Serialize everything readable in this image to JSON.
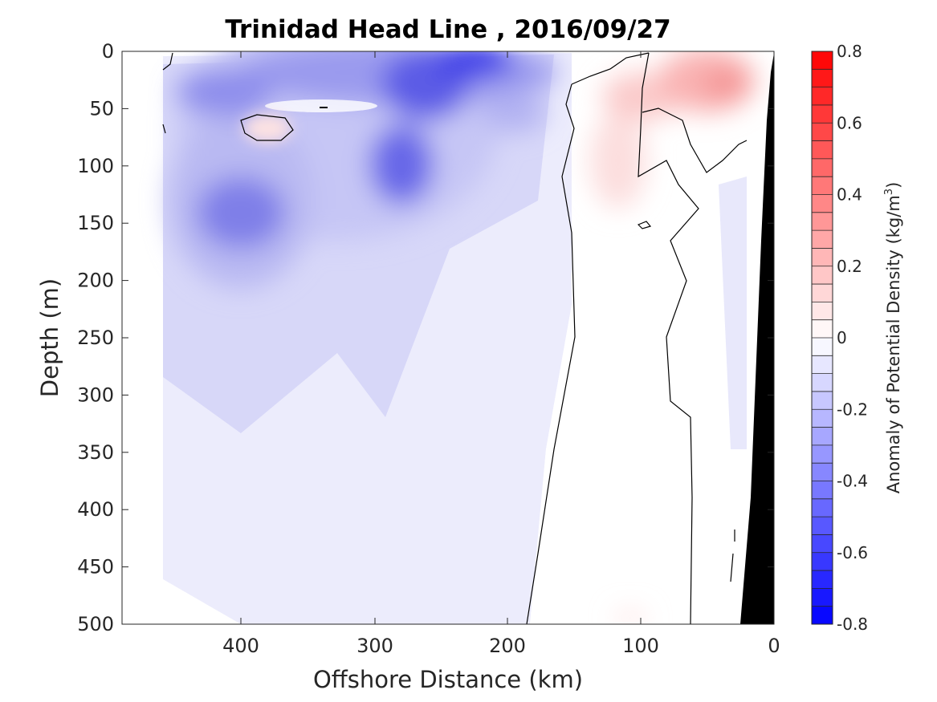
{
  "chart_data": {
    "type": "heatmap",
    "title": "Trinidad Head Line , 2016/09/27",
    "xlabel": "Offshore Distance (km)",
    "ylabel": "Depth (m)",
    "xlim": [
      490,
      0
    ],
    "ylim": [
      0,
      500
    ],
    "x_ticks": [
      "400",
      "300",
      "200",
      "100",
      "0"
    ],
    "y_ticks": [
      "0",
      "50",
      "100",
      "150",
      "200",
      "250",
      "300",
      "350",
      "400",
      "450",
      "500"
    ],
    "colorbar": {
      "label": "Anomaly of Potential Density (kg/m",
      "label_superscript": "3",
      "label_close": ")",
      "range": [
        -0.8,
        0.8
      ],
      "levels": 32,
      "ticks": [
        "0.8",
        "0.6",
        "0.4",
        "0.2",
        "0",
        "-0.2",
        "-0.4",
        "-0.6",
        "-0.8"
      ],
      "color_low": "#0000ff",
      "color_mid": "#ffffff",
      "color_high": "#ff0000"
    },
    "grid": false,
    "bathymetry_color": "#000000",
    "features": [
      {
        "distance_km": 395,
        "depth_m": 140,
        "anomaly": -0.45
      },
      {
        "distance_km": 385,
        "depth_m": 70,
        "anomaly": 0.08
      },
      {
        "distance_km": 255,
        "depth_m": 30,
        "anomaly": -0.5
      },
      {
        "distance_km": 230,
        "depth_m": 5,
        "anomaly": -0.6
      },
      {
        "distance_km": 270,
        "depth_m": 100,
        "anomaly": -0.45
      },
      {
        "distance_km": 415,
        "depth_m": 35,
        "anomaly": -0.35
      },
      {
        "distance_km": 120,
        "depth_m": 40,
        "anomaly": 0.12
      },
      {
        "distance_km": 35,
        "depth_m": 30,
        "anomaly": 0.3
      }
    ]
  }
}
